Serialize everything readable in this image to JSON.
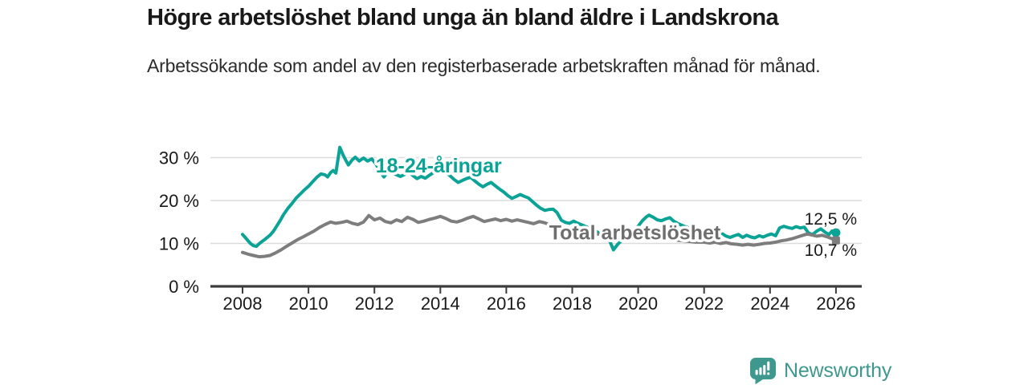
{
  "header": {
    "title": "Högre arbetslöshet bland unga än bland äldre i Landskrona",
    "subtitle": "Arbetssökande som andel av den registerbaserade arbetskraften månad för månad."
  },
  "footer": {
    "brand": "Newsworthy",
    "logo_icon": "speech-bubble-bar-chart-exclamation",
    "brand_color": "#3f988e"
  },
  "colors": {
    "youth_line": "#0aa396",
    "total_line": "#7d7d7d",
    "total_label": "#6e6e6e",
    "grid": "#dcdcdc",
    "axis": "#3c3c3c",
    "text": "#1a1a1a",
    "background": "#ffffff"
  },
  "chart_data": {
    "type": "line",
    "title": "Högre arbetslöshet bland unga än bland äldre i Landskrona",
    "subtitle": "Arbetssökande som andel av den registerbaserade arbetskraften månad för månad.",
    "xlabel": "",
    "ylabel": "",
    "xlim": [
      2007.75,
      2026.8
    ],
    "ylim": [
      0,
      34
    ],
    "grid": "horizontal",
    "legend_position": "inline-labels",
    "x_ticks": [
      2008,
      2010,
      2012,
      2014,
      2016,
      2018,
      2020,
      2022,
      2024,
      2026
    ],
    "y_ticks": [
      {
        "value": 0,
        "label": "0 %"
      },
      {
        "value": 10,
        "label": "10 %"
      },
      {
        "value": 20,
        "label": "20 %"
      },
      {
        "value": 30,
        "label": "30 %"
      }
    ],
    "series": [
      {
        "name": "18-24-åringar",
        "color": "#0aa396",
        "marker_end": "circle",
        "end_label": "12,5 %",
        "end_label_position": "above",
        "end_value": 12.5,
        "label_anchor": {
          "x": 2013.95,
          "y": 28.0
        },
        "points": [
          [
            2008.0,
            12.1
          ],
          [
            2008.08,
            11.4
          ],
          [
            2008.17,
            10.6
          ],
          [
            2008.25,
            9.9
          ],
          [
            2008.33,
            9.5
          ],
          [
            2008.42,
            9.3
          ],
          [
            2008.5,
            9.9
          ],
          [
            2008.58,
            10.4
          ],
          [
            2008.67,
            10.9
          ],
          [
            2008.75,
            11.4
          ],
          [
            2008.83,
            11.9
          ],
          [
            2008.92,
            12.7
          ],
          [
            2009.0,
            13.6
          ],
          [
            2009.13,
            15.2
          ],
          [
            2009.25,
            16.8
          ],
          [
            2009.38,
            18.2
          ],
          [
            2009.5,
            19.3
          ],
          [
            2009.63,
            20.6
          ],
          [
            2009.75,
            21.5
          ],
          [
            2009.88,
            22.5
          ],
          [
            2010.0,
            23.3
          ],
          [
            2010.13,
            24.4
          ],
          [
            2010.25,
            25.4
          ],
          [
            2010.38,
            26.2
          ],
          [
            2010.5,
            26.0
          ],
          [
            2010.58,
            25.5
          ],
          [
            2010.67,
            26.5
          ],
          [
            2010.75,
            27.0
          ],
          [
            2010.83,
            26.4
          ],
          [
            2010.95,
            32.4
          ],
          [
            2011.05,
            30.6
          ],
          [
            2011.13,
            29.4
          ],
          [
            2011.21,
            28.3
          ],
          [
            2011.33,
            29.5
          ],
          [
            2011.42,
            30.1
          ],
          [
            2011.54,
            29.2
          ],
          [
            2011.67,
            29.9
          ],
          [
            2011.79,
            29.2
          ],
          [
            2011.92,
            29.7
          ],
          [
            2012.04,
            28.6
          ],
          [
            2012.17,
            26.8
          ],
          [
            2012.29,
            25.5
          ],
          [
            2012.42,
            26.9
          ],
          [
            2012.54,
            26.4
          ],
          [
            2012.67,
            26.0
          ],
          [
            2012.79,
            25.6
          ],
          [
            2012.92,
            26.1
          ],
          [
            2013.04,
            26.6
          ],
          [
            2013.17,
            25.8
          ],
          [
            2013.29,
            25.1
          ],
          [
            2013.42,
            25.6
          ],
          [
            2013.54,
            25.2
          ],
          [
            2013.67,
            25.9
          ],
          [
            2013.79,
            26.5
          ],
          [
            2013.92,
            26.9
          ],
          [
            2014.04,
            27.2
          ],
          [
            2014.17,
            26.6
          ],
          [
            2014.29,
            25.8
          ],
          [
            2014.42,
            24.9
          ],
          [
            2014.54,
            24.2
          ],
          [
            2014.67,
            24.7
          ],
          [
            2014.79,
            25.1
          ],
          [
            2014.92,
            25.4
          ],
          [
            2015.04,
            24.6
          ],
          [
            2015.17,
            23.8
          ],
          [
            2015.29,
            23.2
          ],
          [
            2015.42,
            23.8
          ],
          [
            2015.54,
            24.2
          ],
          [
            2015.67,
            23.4
          ],
          [
            2015.79,
            22.7
          ],
          [
            2015.92,
            22.0
          ],
          [
            2016.04,
            21.2
          ],
          [
            2016.17,
            20.5
          ],
          [
            2016.29,
            20.9
          ],
          [
            2016.42,
            21.4
          ],
          [
            2016.54,
            21.0
          ],
          [
            2016.67,
            20.6
          ],
          [
            2016.79,
            19.8
          ],
          [
            2016.92,
            18.9
          ],
          [
            2017.04,
            18.2
          ],
          [
            2017.17,
            17.7
          ],
          [
            2017.29,
            17.9
          ],
          [
            2017.42,
            18.0
          ],
          [
            2017.54,
            17.2
          ],
          [
            2017.67,
            15.4
          ],
          [
            2017.79,
            14.9
          ],
          [
            2017.92,
            14.7
          ],
          [
            2018.04,
            15.2
          ],
          [
            2018.17,
            14.7
          ],
          [
            2018.33,
            14.2
          ],
          [
            2018.5,
            13.6
          ],
          [
            2018.67,
            13.0
          ],
          [
            2018.83,
            12.4
          ],
          [
            2019.0,
            11.8
          ],
          [
            2019.13,
            10.7
          ],
          [
            2019.25,
            8.5
          ],
          [
            2019.38,
            9.8
          ],
          [
            2019.5,
            10.7
          ],
          [
            2019.63,
            11.3
          ],
          [
            2019.75,
            12.0
          ],
          [
            2019.88,
            13.0
          ],
          [
            2020.0,
            14.0
          ],
          [
            2020.13,
            15.3
          ],
          [
            2020.25,
            16.2
          ],
          [
            2020.33,
            16.6
          ],
          [
            2020.46,
            16.1
          ],
          [
            2020.58,
            15.5
          ],
          [
            2020.71,
            15.3
          ],
          [
            2020.83,
            15.7
          ],
          [
            2020.96,
            16.0
          ],
          [
            2021.08,
            15.2
          ],
          [
            2021.21,
            14.6
          ],
          [
            2021.33,
            14.2
          ],
          [
            2021.5,
            13.7
          ],
          [
            2021.67,
            13.3
          ],
          [
            2021.83,
            13.0
          ],
          [
            2022.0,
            13.1
          ],
          [
            2022.17,
            13.0
          ],
          [
            2022.29,
            12.3
          ],
          [
            2022.42,
            11.8
          ],
          [
            2022.54,
            12.3
          ],
          [
            2022.67,
            11.7
          ],
          [
            2022.79,
            11.4
          ],
          [
            2022.92,
            11.8
          ],
          [
            2023.04,
            12.1
          ],
          [
            2023.17,
            11.4
          ],
          [
            2023.29,
            11.9
          ],
          [
            2023.42,
            11.5
          ],
          [
            2023.54,
            11.3
          ],
          [
            2023.67,
            11.8
          ],
          [
            2023.79,
            11.5
          ],
          [
            2023.92,
            11.9
          ],
          [
            2024.04,
            12.2
          ],
          [
            2024.17,
            11.8
          ],
          [
            2024.29,
            13.6
          ],
          [
            2024.42,
            14.0
          ],
          [
            2024.54,
            13.7
          ],
          [
            2024.67,
            13.5
          ],
          [
            2024.79,
            13.9
          ],
          [
            2024.92,
            13.6
          ],
          [
            2025.04,
            13.8
          ],
          [
            2025.17,
            12.4
          ],
          [
            2025.29,
            12.1
          ],
          [
            2025.42,
            12.9
          ],
          [
            2025.54,
            13.4
          ],
          [
            2025.67,
            12.6
          ],
          [
            2025.79,
            12.1
          ],
          [
            2025.88,
            12.9
          ],
          [
            2026.0,
            12.5
          ]
        ]
      },
      {
        "name": "Total arbetslöshet",
        "color": "#7d7d7d",
        "marker_end": "square",
        "end_label": "10,7 %",
        "end_label_position": "below",
        "end_value": 10.7,
        "label_anchor": {
          "x": 2019.9,
          "y": 12.4
        },
        "points": [
          [
            2008.0,
            7.9
          ],
          [
            2008.17,
            7.5
          ],
          [
            2008.33,
            7.2
          ],
          [
            2008.5,
            6.9
          ],
          [
            2008.67,
            7.0
          ],
          [
            2008.83,
            7.2
          ],
          [
            2009.0,
            7.8
          ],
          [
            2009.17,
            8.5
          ],
          [
            2009.33,
            9.3
          ],
          [
            2009.5,
            10.1
          ],
          [
            2009.67,
            10.9
          ],
          [
            2009.83,
            11.5
          ],
          [
            2010.0,
            12.2
          ],
          [
            2010.17,
            12.9
          ],
          [
            2010.33,
            13.7
          ],
          [
            2010.5,
            14.4
          ],
          [
            2010.67,
            15.0
          ],
          [
            2010.83,
            14.7
          ],
          [
            2011.0,
            14.9
          ],
          [
            2011.17,
            15.2
          ],
          [
            2011.33,
            14.7
          ],
          [
            2011.5,
            14.4
          ],
          [
            2011.67,
            15.0
          ],
          [
            2011.83,
            16.5
          ],
          [
            2012.0,
            15.5
          ],
          [
            2012.17,
            15.9
          ],
          [
            2012.33,
            15.1
          ],
          [
            2012.5,
            14.8
          ],
          [
            2012.67,
            15.5
          ],
          [
            2012.83,
            15.1
          ],
          [
            2013.0,
            16.1
          ],
          [
            2013.17,
            15.6
          ],
          [
            2013.33,
            14.9
          ],
          [
            2013.5,
            15.2
          ],
          [
            2013.67,
            15.6
          ],
          [
            2013.83,
            15.9
          ],
          [
            2014.0,
            16.3
          ],
          [
            2014.17,
            15.8
          ],
          [
            2014.33,
            15.2
          ],
          [
            2014.5,
            15.0
          ],
          [
            2014.67,
            15.4
          ],
          [
            2014.83,
            15.9
          ],
          [
            2015.0,
            16.3
          ],
          [
            2015.17,
            15.7
          ],
          [
            2015.33,
            15.1
          ],
          [
            2015.5,
            15.4
          ],
          [
            2015.67,
            15.7
          ],
          [
            2015.83,
            15.3
          ],
          [
            2016.0,
            15.6
          ],
          [
            2016.17,
            15.2
          ],
          [
            2016.33,
            15.5
          ],
          [
            2016.5,
            15.2
          ],
          [
            2016.67,
            14.9
          ],
          [
            2016.83,
            14.6
          ],
          [
            2017.0,
            15.1
          ],
          [
            2017.17,
            14.8
          ],
          [
            2017.33,
            14.3
          ],
          [
            2017.5,
            14.0
          ],
          [
            2017.67,
            13.8
          ],
          [
            2017.83,
            13.6
          ],
          [
            2018.0,
            13.4
          ],
          [
            2018.25,
            13.0
          ],
          [
            2018.5,
            12.6
          ],
          [
            2018.75,
            12.2
          ],
          [
            2019.0,
            11.9
          ],
          [
            2019.25,
            11.5
          ],
          [
            2019.5,
            11.2
          ],
          [
            2019.75,
            11.1
          ],
          [
            2020.0,
            11.2
          ],
          [
            2020.25,
            11.4
          ],
          [
            2020.5,
            11.3
          ],
          [
            2020.75,
            11.1
          ],
          [
            2021.0,
            10.9
          ],
          [
            2021.25,
            10.7
          ],
          [
            2021.5,
            10.5
          ],
          [
            2021.75,
            10.3
          ],
          [
            2022.0,
            10.3
          ],
          [
            2022.17,
            10.1
          ],
          [
            2022.33,
            10.3
          ],
          [
            2022.5,
            10.0
          ],
          [
            2022.67,
            10.2
          ],
          [
            2022.83,
            9.9
          ],
          [
            2023.0,
            9.8
          ],
          [
            2023.17,
            9.6
          ],
          [
            2023.33,
            9.8
          ],
          [
            2023.5,
            9.6
          ],
          [
            2023.67,
            9.8
          ],
          [
            2023.83,
            10.0
          ],
          [
            2024.0,
            10.1
          ],
          [
            2024.17,
            10.3
          ],
          [
            2024.33,
            10.6
          ],
          [
            2024.5,
            10.8
          ],
          [
            2024.67,
            11.1
          ],
          [
            2024.83,
            11.5
          ],
          [
            2025.0,
            11.9
          ],
          [
            2025.13,
            12.2
          ],
          [
            2025.25,
            12.0
          ],
          [
            2025.42,
            11.7
          ],
          [
            2025.58,
            11.9
          ],
          [
            2025.75,
            11.5
          ],
          [
            2025.88,
            11.1
          ],
          [
            2026.0,
            10.7
          ]
        ]
      }
    ]
  }
}
